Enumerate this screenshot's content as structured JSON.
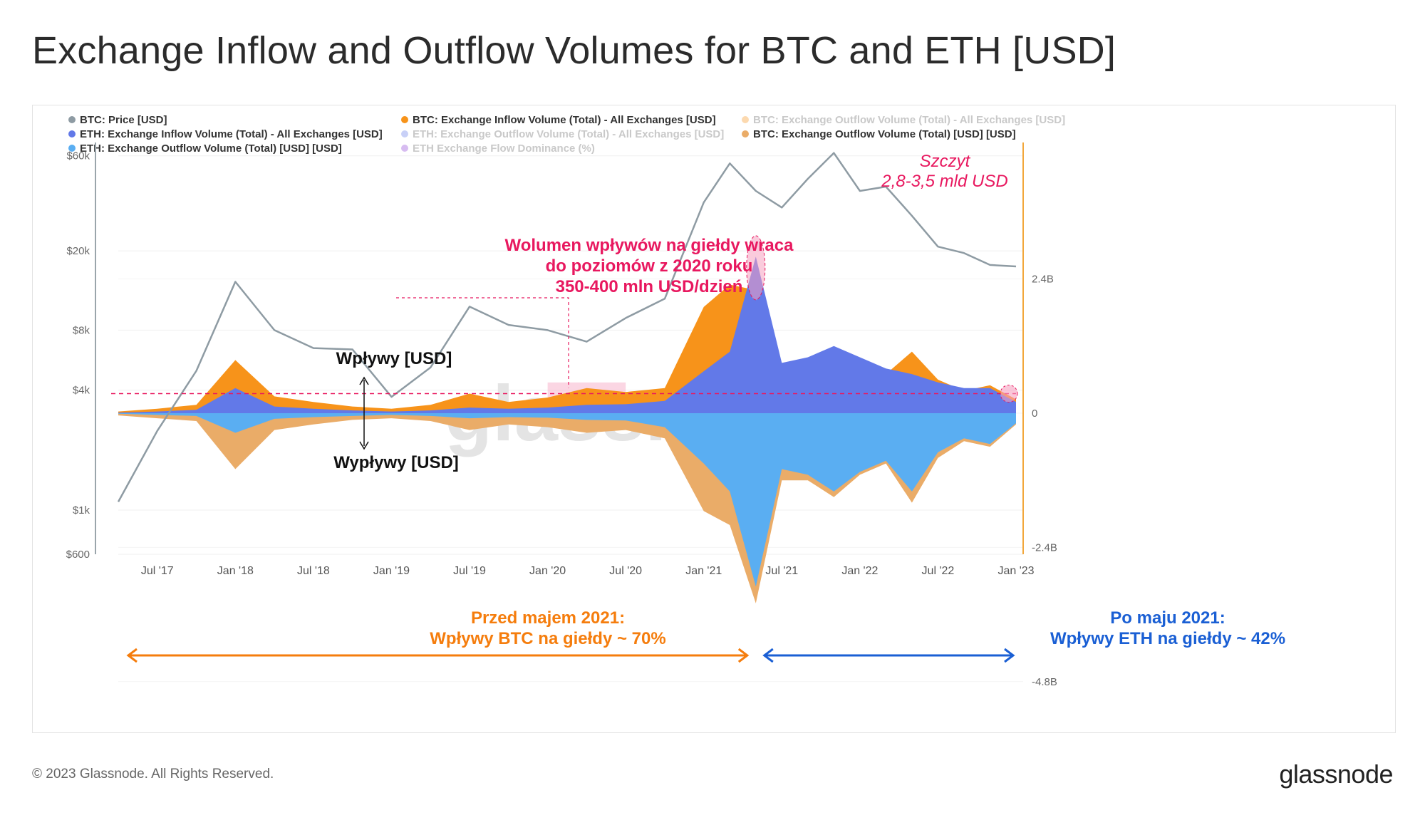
{
  "page": {
    "title": "Exchange Inflow and Outflow Volumes for BTC and ETH [USD]",
    "copyright": "© 2023 Glassnode. All Rights Reserved.",
    "brand": "glassnode",
    "watermark": "glassnode"
  },
  "colors": {
    "price": "#8e9ba3",
    "btc_inflow": "#f7931a",
    "btc_outflow": "#eaac68",
    "eth_inflow": "#6279e8",
    "eth_outflow": "#5aaef2",
    "dominance": "#8b3fd6",
    "annotation_pink": "#e8185f",
    "annotation_orange": "#f57d0d",
    "annotation_blue": "#1a5fd4",
    "right_axis": "#f2a73b"
  },
  "legend": [
    {
      "label": "BTC: Price [USD]",
      "color": "#8e9ba3",
      "enabled": true
    },
    {
      "label": "BTC: Exchange Inflow Volume (Total) - All Exchanges [USD]",
      "color": "#f7931a",
      "enabled": true
    },
    {
      "label": "BTC: Exchange Outflow Volume (Total) - All Exchanges [USD]",
      "color": "#f7931a",
      "enabled": false
    },
    {
      "label": "ETH: Exchange Inflow Volume (Total) - All Exchanges [USD]",
      "color": "#6279e8",
      "enabled": true
    },
    {
      "label": "ETH: Exchange Outflow Volume (Total) - All Exchanges [USD]",
      "color": "#6279e8",
      "enabled": false
    },
    {
      "label": "BTC: Exchange Outflow Volume (Total) [USD] [USD]",
      "color": "#eaac68",
      "enabled": true
    },
    {
      "label": "ETH: Exchange Outflow Volume (Total) [USD] [USD]",
      "color": "#5aaef2",
      "enabled": true
    },
    {
      "label": "ETH Exchange Flow Dominance (%)",
      "color": "#8b3fd6",
      "enabled": false
    }
  ],
  "annotations": {
    "peak_line1": "Szczyt",
    "peak_line2": "2,8-3,5 mld USD",
    "return_line1": "Wolumen wpływów na giełdy wraca",
    "return_line2": "do poziomów z 2020 roku",
    "return_line3": "350-400 mln USD/dzień",
    "inflows_label": "Wpływy [USD]",
    "outflows_label": "Wypływy [USD]",
    "before_line1": "Przed majem 2021:",
    "before_line2": "Wpływy BTC na giełdy ~ 70%",
    "after_line1": "Po maju 2021:",
    "after_line2": "Wpływy ETH na giełdy ~ 42%"
  },
  "chart_data": {
    "type": "area",
    "x": [
      "2017-04",
      "2017-07",
      "2017-10",
      "2018-01",
      "2018-04",
      "2018-07",
      "2018-10",
      "2019-01",
      "2019-04",
      "2019-07",
      "2019-10",
      "2020-01",
      "2020-04",
      "2020-07",
      "2020-10",
      "2021-01",
      "2021-03",
      "2021-05",
      "2021-07",
      "2021-09",
      "2021-11",
      "2022-01",
      "2022-03",
      "2022-05",
      "2022-07",
      "2022-09",
      "2022-11",
      "2023-01"
    ],
    "series": [
      {
        "name": "BTC: Price [USD]",
        "axis": "left-log",
        "values": [
          1100,
          2500,
          5000,
          14000,
          8000,
          6500,
          6400,
          3700,
          5200,
          10500,
          8500,
          8000,
          7000,
          9200,
          11500,
          35000,
          55000,
          40000,
          33000,
          46000,
          62000,
          40000,
          42000,
          30000,
          21000,
          19500,
          17000,
          16700
        ]
      },
      {
        "name": "BTC: Exchange Inflow Volume (Total) - All Exchanges [USD]",
        "axis": "right",
        "values": [
          0.03,
          0.08,
          0.15,
          0.95,
          0.3,
          0.2,
          0.12,
          0.08,
          0.15,
          0.35,
          0.2,
          0.28,
          0.45,
          0.38,
          0.45,
          1.9,
          2.3,
          2.2,
          0.7,
          0.9,
          1.1,
          0.85,
          0.7,
          1.1,
          0.6,
          0.4,
          0.5,
          0.25
        ]
      },
      {
        "name": "ETH: Exchange Inflow Volume (Total) - All Exchanges [USD]",
        "axis": "right",
        "values": [
          0.01,
          0.03,
          0.06,
          0.45,
          0.12,
          0.08,
          0.05,
          0.03,
          0.05,
          0.1,
          0.08,
          0.1,
          0.15,
          0.16,
          0.22,
          0.75,
          1.1,
          2.8,
          0.9,
          1.0,
          1.2,
          1.0,
          0.8,
          0.7,
          0.55,
          0.45,
          0.45,
          0.2
        ]
      },
      {
        "name": "BTC: Exchange Outflow Volume (Total) [USD] [USD]",
        "axis": "right",
        "values": [
          -0.04,
          -0.09,
          -0.14,
          -1.0,
          -0.3,
          -0.2,
          -0.12,
          -0.09,
          -0.14,
          -0.3,
          -0.2,
          -0.25,
          -0.35,
          -0.3,
          -0.45,
          -1.75,
          -2.0,
          -3.4,
          -1.2,
          -1.2,
          -1.5,
          -1.1,
          -0.9,
          -1.6,
          -0.8,
          -0.5,
          -0.6,
          -0.2
        ]
      },
      {
        "name": "ETH: Exchange Outflow Volume (Total) [USD] [USD]",
        "axis": "right",
        "values": [
          -0.01,
          -0.03,
          -0.05,
          -0.35,
          -0.1,
          -0.07,
          -0.05,
          -0.03,
          -0.05,
          -0.09,
          -0.07,
          -0.08,
          -0.12,
          -0.13,
          -0.25,
          -0.9,
          -1.4,
          -3.1,
          -1.0,
          -1.1,
          -1.4,
          -1.05,
          -0.85,
          -1.4,
          -0.7,
          -0.45,
          -0.55,
          -0.18
        ]
      }
    ],
    "x_tick_labels": [
      "Jul '17",
      "Jan '18",
      "Jul '18",
      "Jan '19",
      "Jul '19",
      "Jan '20",
      "Jul '20",
      "Jan '21",
      "Jul '21",
      "Jan '22",
      "Jul '22",
      "Jan '23"
    ],
    "x_tick_dates": [
      "2017-07",
      "2018-01",
      "2018-07",
      "2019-01",
      "2019-07",
      "2020-01",
      "2020-07",
      "2021-01",
      "2021-07",
      "2022-01",
      "2022-07",
      "2023-01"
    ],
    "x_range": [
      "2017-04",
      "2023-01"
    ],
    "left_axis": {
      "scale": "log",
      "tick_labels": [
        "$60k",
        "$20k",
        "$8k",
        "$4k",
        "$1k",
        "$600"
      ],
      "ticks": [
        60000,
        20000,
        8000,
        4000,
        1000,
        600
      ],
      "range": [
        600,
        70000
      ]
    },
    "right_axis": {
      "scale": "linear",
      "tick_labels": [
        "2.4B",
        "0",
        "-2.4B",
        "-4.8B"
      ],
      "ticks": [
        2.4,
        0,
        -2.4,
        -4.8
      ],
      "range": [
        -4.8,
        4.8
      ],
      "units": "billion USD"
    },
    "reference_level": 0.35,
    "grid": true,
    "legend_position": "top"
  }
}
